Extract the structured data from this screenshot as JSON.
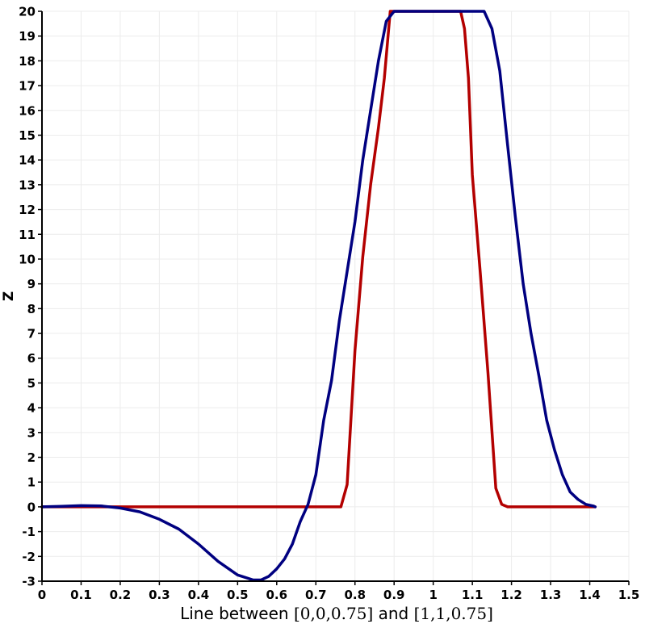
{
  "chart_data": {
    "type": "line",
    "xlabel_parts": [
      "Line between ",
      "[0,0,0.75]",
      " and ",
      "[1,1,0.75]"
    ],
    "ylabel": "Z",
    "xlim": [
      0,
      1.5
    ],
    "ylim": [
      -3,
      20
    ],
    "xticks": [
      0,
      0.1,
      0.2,
      0.3,
      0.4,
      0.5,
      0.6,
      0.7,
      0.8,
      0.9,
      1,
      1.1,
      1.2,
      1.3,
      1.4,
      1.5
    ],
    "yticks": [
      -3,
      -2,
      -1,
      0,
      1,
      2,
      3,
      4,
      5,
      6,
      7,
      8,
      9,
      10,
      11,
      12,
      13,
      14,
      15,
      16,
      17,
      18,
      19,
      20
    ],
    "grid": true,
    "series": [
      {
        "color": "#b30000",
        "x": [
          0,
          0.764,
          0.78,
          0.8,
          0.82,
          0.84,
          0.86,
          0.875,
          0.89,
          1.07,
          1.08,
          1.09,
          1.1,
          1.12,
          1.14,
          1.16,
          1.175,
          1.19,
          1.414
        ],
        "y": [
          0,
          0,
          0.9,
          6.3,
          10.1,
          13,
          15.3,
          17.3,
          20,
          20,
          19.3,
          17.3,
          13.4,
          9.5,
          5.4,
          0.75,
          0.1,
          0,
          0
        ]
      },
      {
        "color": "#000080",
        "x": [
          0,
          0.05,
          0.1,
          0.15,
          0.2,
          0.25,
          0.3,
          0.35,
          0.4,
          0.45,
          0.5,
          0.54,
          0.56,
          0.58,
          0.6,
          0.62,
          0.64,
          0.66,
          0.68,
          0.7,
          0.72,
          0.74,
          0.76,
          0.78,
          0.8,
          0.82,
          0.84,
          0.86,
          0.88,
          0.9,
          1.0,
          1.1,
          1.13,
          1.15,
          1.17,
          1.19,
          1.21,
          1.23,
          1.25,
          1.27,
          1.29,
          1.31,
          1.33,
          1.35,
          1.37,
          1.39,
          1.41,
          1.414
        ],
        "y": [
          0,
          0.02,
          0.05,
          0.04,
          -0.05,
          -0.2,
          -0.5,
          -0.9,
          -1.5,
          -2.2,
          -2.75,
          -2.95,
          -2.95,
          -2.8,
          -2.5,
          -2.1,
          -1.5,
          -0.6,
          0.1,
          1.3,
          3.5,
          5.1,
          7.5,
          9.5,
          11.5,
          14,
          16,
          18,
          19.6,
          20,
          20,
          20,
          20,
          19.3,
          17.6,
          14.6,
          11.7,
          9,
          7,
          5.3,
          3.5,
          2.3,
          1.3,
          0.6,
          0.3,
          0.1,
          0.03,
          0
        ]
      }
    ]
  }
}
